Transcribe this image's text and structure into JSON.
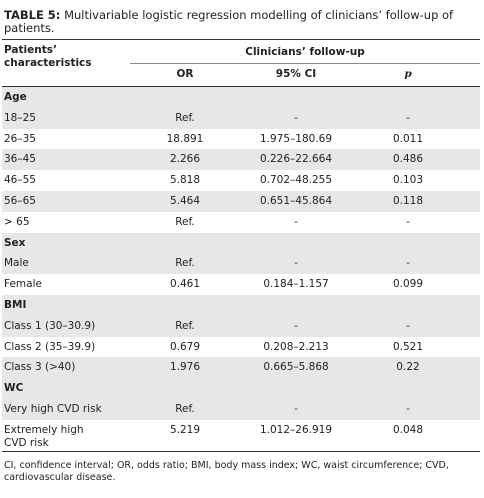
{
  "title": {
    "label": "TABLE 5:",
    "text": "Multivariable logistic regression modelling of clinicians’ follow-up of patients."
  },
  "table": {
    "header": {
      "row_label": "Patients’ characteristics",
      "group": "Clinicians’ follow-up",
      "columns": [
        "OR",
        "95% CI",
        "p"
      ]
    },
    "sections": [
      {
        "name": "Age",
        "rows": [
          [
            "18–25",
            "Ref.",
            "-",
            "-"
          ],
          [
            "26–35",
            "18.891",
            "1.975–180.69",
            "0.011"
          ],
          [
            "36–45",
            "2.266",
            "0.226–22.664",
            "0.486"
          ],
          [
            "46–55",
            "5.818",
            "0.702–48.255",
            "0.103"
          ],
          [
            "56–65",
            "5.464",
            "0.651–45.864",
            "0.118"
          ],
          [
            "> 65",
            "Ref.",
            "-",
            "-"
          ]
        ]
      },
      {
        "name": "Sex",
        "rows": [
          [
            "Male",
            "Ref.",
            "-",
            "-"
          ],
          [
            "Female",
            "0.461",
            "0.184–1.157",
            "0.099"
          ]
        ]
      },
      {
        "name": "BMI",
        "rows": [
          [
            "Class 1 (30–30.9)",
            "Ref.",
            "-",
            "-"
          ],
          [
            "Class 2 (35–39.9)",
            "0.679",
            "0.208–2.213",
            "0.521"
          ],
          [
            "Class 3 (>40)",
            "1.976",
            "0.665–5.868",
            "0.22"
          ]
        ]
      },
      {
        "name": "WC",
        "rows": [
          [
            "Very high CVD risk",
            "Ref.",
            "-",
            "-"
          ],
          [
            "Extremely high CVD risk",
            "5.219",
            "1.012–26.919",
            "0.048"
          ]
        ]
      }
    ]
  },
  "footnote": "CI, confidence interval; OR, odds ratio; BMI, body mass index; WC, waist circumference; CVD, cardiovascular disease."
}
